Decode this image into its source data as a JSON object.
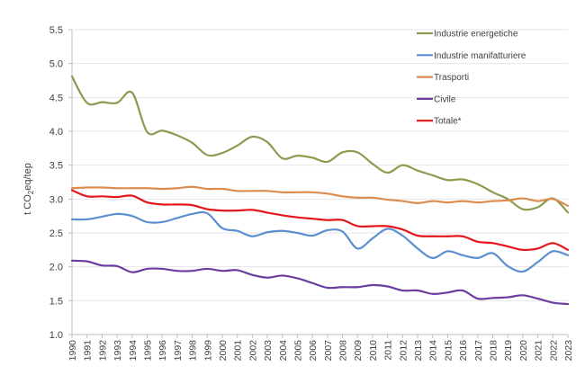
{
  "chart_data": {
    "type": "line",
    "title": "",
    "xlabel": "",
    "ylabel": "t CO2eq/tep",
    "ylabel_parts": {
      "pre": "t CO",
      "sub": "2",
      "post": "eq/tep"
    },
    "ylim": [
      1.0,
      5.5
    ],
    "yticks": [
      "1.0",
      "1.5",
      "2.0",
      "2.5",
      "3.0",
      "3.5",
      "4.0",
      "4.5",
      "5.0",
      "5.5"
    ],
    "grid": true,
    "legend_position": "top-right",
    "x": [
      "1990",
      "1991",
      "1992",
      "1993",
      "1994",
      "1995",
      "1996",
      "1997",
      "1998",
      "1999",
      "2000",
      "2001",
      "2002",
      "2003",
      "2004",
      "2005",
      "2006",
      "2007",
      "2008",
      "2009",
      "2010",
      "2011",
      "2012",
      "2013",
      "2014",
      "2015",
      "2016",
      "2017",
      "2018",
      "2019",
      "2020",
      "2021",
      "2022",
      "2023"
    ],
    "series": [
      {
        "name": "Industrie energetiche",
        "color": "#8a9c4f",
        "values": [
          4.81,
          4.42,
          4.43,
          4.42,
          4.57,
          3.99,
          4.01,
          3.94,
          3.83,
          3.65,
          3.68,
          3.79,
          3.92,
          3.84,
          3.6,
          3.64,
          3.61,
          3.55,
          3.69,
          3.69,
          3.52,
          3.39,
          3.5,
          3.42,
          3.35,
          3.28,
          3.29,
          3.22,
          3.1,
          3.0,
          2.85,
          2.88,
          3.01,
          2.8
        ]
      },
      {
        "name": "Industrie manifatturiere",
        "color": "#5b8fcf",
        "values": [
          2.7,
          2.7,
          2.74,
          2.78,
          2.75,
          2.66,
          2.66,
          2.72,
          2.78,
          2.79,
          2.57,
          2.53,
          2.45,
          2.51,
          2.53,
          2.5,
          2.46,
          2.54,
          2.52,
          2.27,
          2.42,
          2.56,
          2.46,
          2.27,
          2.13,
          2.23,
          2.17,
          2.13,
          2.2,
          2.01,
          1.93,
          2.07,
          2.23,
          2.17
        ]
      },
      {
        "name": "Trasporti",
        "color": "#dc8c4e",
        "values": [
          3.16,
          3.17,
          3.17,
          3.16,
          3.16,
          3.16,
          3.15,
          3.16,
          3.18,
          3.15,
          3.15,
          3.12,
          3.12,
          3.12,
          3.1,
          3.1,
          3.1,
          3.08,
          3.04,
          3.02,
          3.02,
          2.99,
          2.97,
          2.94,
          2.97,
          2.95,
          2.97,
          2.95,
          2.97,
          2.98,
          3.01,
          2.97,
          3.0,
          2.9
        ]
      },
      {
        "name": "Civile",
        "color": "#6a3d9e",
        "values": [
          2.09,
          2.08,
          2.02,
          2.01,
          1.92,
          1.97,
          1.97,
          1.94,
          1.94,
          1.97,
          1.94,
          1.95,
          1.88,
          1.84,
          1.87,
          1.83,
          1.76,
          1.69,
          1.7,
          1.7,
          1.73,
          1.71,
          1.65,
          1.65,
          1.6,
          1.62,
          1.65,
          1.53,
          1.54,
          1.55,
          1.58,
          1.53,
          1.47,
          1.45
        ]
      },
      {
        "name": "Totale*",
        "color": "#e3161b",
        "values": [
          3.13,
          3.04,
          3.04,
          3.03,
          3.05,
          2.95,
          2.92,
          2.92,
          2.91,
          2.85,
          2.83,
          2.83,
          2.84,
          2.8,
          2.76,
          2.73,
          2.71,
          2.69,
          2.69,
          2.6,
          2.6,
          2.6,
          2.55,
          2.46,
          2.45,
          2.45,
          2.45,
          2.37,
          2.35,
          2.3,
          2.25,
          2.27,
          2.35,
          2.25
        ]
      }
    ]
  }
}
